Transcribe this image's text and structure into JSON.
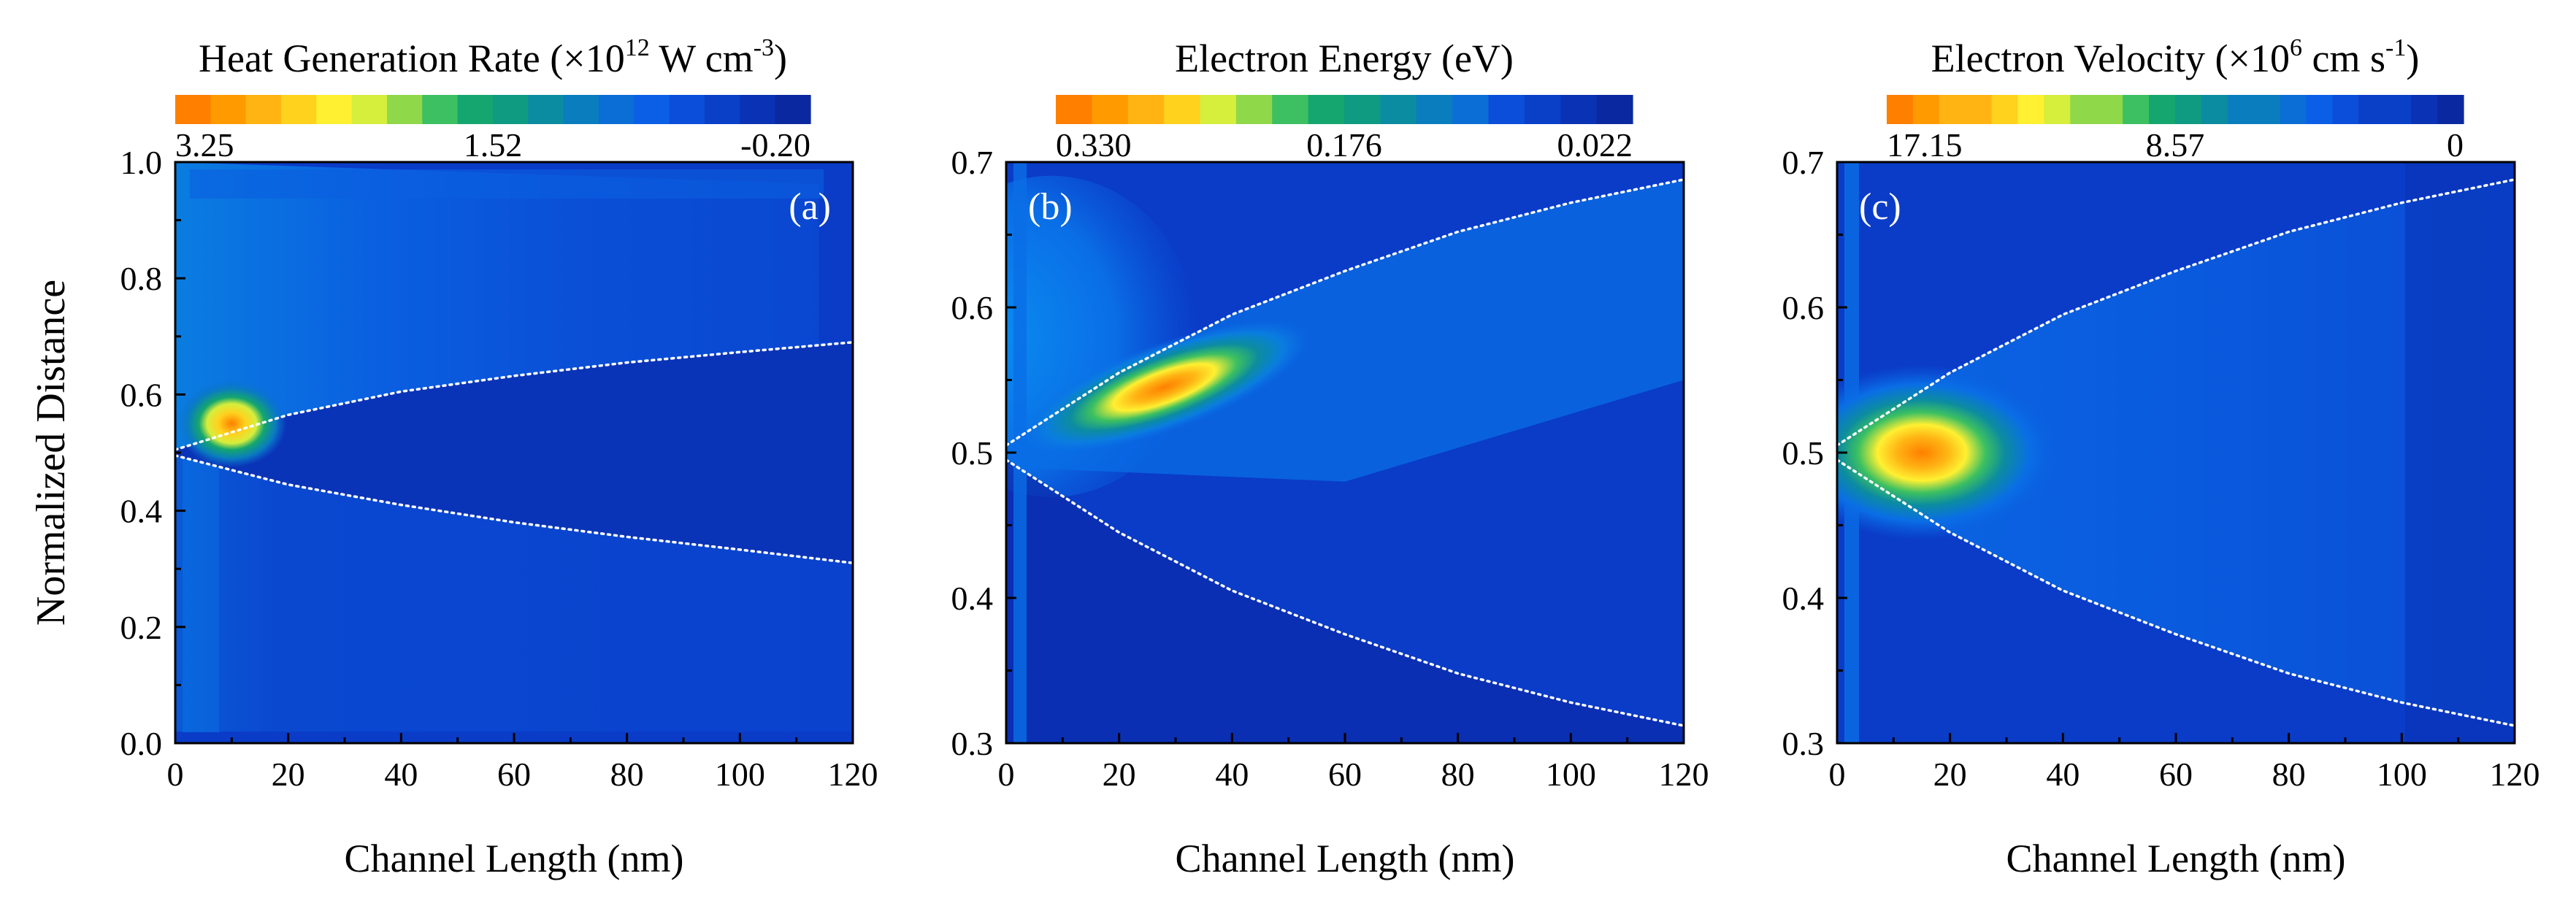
{
  "figure": {
    "ylabel": "Normalized Distance",
    "xlabel": "Channel Length (nm)"
  },
  "colorscale": [
    "#ff7f00",
    "#ff9a00",
    "#ffb414",
    "#ffd21e",
    "#fff032",
    "#d6ee3c",
    "#8fd84a",
    "#3cc061",
    "#14a66e",
    "#0f9a82",
    "#0c8ca0",
    "#0a7dbe",
    "#0a6ed6",
    "#0a5fe6",
    "#0a4ed9",
    "#0a3fc8",
    "#0a32b4",
    "#0a28a0"
  ],
  "background_color": "#0a3cc8",
  "chart_data": [
    {
      "type": "heatmap",
      "panel_label": "(a)",
      "colorbar": {
        "title_main": "Heat Generation Rate (×10",
        "title_exp1": "12",
        "title_mid": " W cm",
        "title_exp2": "-3",
        "title_end": ")",
        "tick_labels": [
          "3.25",
          "1.52",
          "-0.20"
        ],
        "levels": 18,
        "max": 3.25,
        "min": -0.2
      },
      "xlabel": "Channel Length (nm)",
      "ylabel": "Normalized Distance",
      "xlim": [
        0,
        120
      ],
      "ylim": [
        0.0,
        1.0
      ],
      "xticks": [
        0,
        20,
        40,
        60,
        80,
        100,
        120
      ],
      "yticks": [
        "0.0",
        "0.2",
        "0.4",
        "0.6",
        "0.8",
        "1.0"
      ],
      "boundary_upper": [
        [
          0,
          0.505
        ],
        [
          20,
          0.565
        ],
        [
          40,
          0.605
        ],
        [
          60,
          0.632
        ],
        [
          80,
          0.655
        ],
        [
          100,
          0.673
        ],
        [
          120,
          0.69
        ]
      ],
      "boundary_lower": [
        [
          0,
          0.495
        ],
        [
          20,
          0.445
        ],
        [
          40,
          0.41
        ],
        [
          60,
          0.38
        ],
        [
          80,
          0.355
        ],
        [
          100,
          0.333
        ],
        [
          120,
          0.31
        ]
      ],
      "hotspot": {
        "x": 10,
        "y": 0.55,
        "value": 3.25
      }
    },
    {
      "type": "heatmap",
      "panel_label": "(b)",
      "colorbar": {
        "title_main": "Electron Energy (eV)",
        "tick_labels": [
          "0.330",
          "0.176",
          "0.022"
        ],
        "levels": 16,
        "max": 0.33,
        "min": 0.022
      },
      "xlabel": "Channel Length (nm)",
      "ylabel": "",
      "xlim": [
        0,
        120
      ],
      "ylim": [
        0.3,
        0.7
      ],
      "xticks": [
        0,
        20,
        40,
        60,
        80,
        100,
        120
      ],
      "yticks": [
        "0.3",
        "0.4",
        "0.5",
        "0.6",
        "0.7"
      ],
      "boundary_upper": [
        [
          0,
          0.505
        ],
        [
          20,
          0.555
        ],
        [
          40,
          0.595
        ],
        [
          60,
          0.625
        ],
        [
          80,
          0.652
        ],
        [
          100,
          0.672
        ],
        [
          120,
          0.688
        ]
      ],
      "boundary_lower": [
        [
          0,
          0.495
        ],
        [
          20,
          0.445
        ],
        [
          40,
          0.405
        ],
        [
          60,
          0.375
        ],
        [
          80,
          0.348
        ],
        [
          100,
          0.328
        ],
        [
          120,
          0.312
        ]
      ],
      "hotspot": {
        "x": 28,
        "y": 0.545,
        "value": 0.33
      }
    },
    {
      "type": "heatmap",
      "panel_label": "(c)",
      "colorbar": {
        "title_main": "Electron Velocity (×10",
        "title_exp1": "6",
        "title_mid": " cm s",
        "title_exp2": "-1",
        "title_end": ")",
        "tick_labels": [
          "17.15",
          "8.57",
          "0"
        ],
        "levels": 22,
        "max": 17.15,
        "min": 0
      },
      "xlabel": "Channel Length (nm)",
      "ylabel": "",
      "xlim": [
        0,
        120
      ],
      "ylim": [
        0.3,
        0.7
      ],
      "xticks": [
        0,
        20,
        40,
        60,
        80,
        100,
        120
      ],
      "yticks": [
        "0.3",
        "0.4",
        "0.5",
        "0.6",
        "0.7"
      ],
      "boundary_upper": [
        [
          0,
          0.505
        ],
        [
          20,
          0.555
        ],
        [
          40,
          0.595
        ],
        [
          60,
          0.625
        ],
        [
          80,
          0.652
        ],
        [
          100,
          0.672
        ],
        [
          120,
          0.688
        ]
      ],
      "boundary_lower": [
        [
          0,
          0.495
        ],
        [
          20,
          0.445
        ],
        [
          40,
          0.405
        ],
        [
          60,
          0.375
        ],
        [
          80,
          0.348
        ],
        [
          100,
          0.328
        ],
        [
          120,
          0.312
        ]
      ],
      "hotspot": {
        "x": 15,
        "y": 0.5,
        "value": 17.15
      }
    }
  ]
}
